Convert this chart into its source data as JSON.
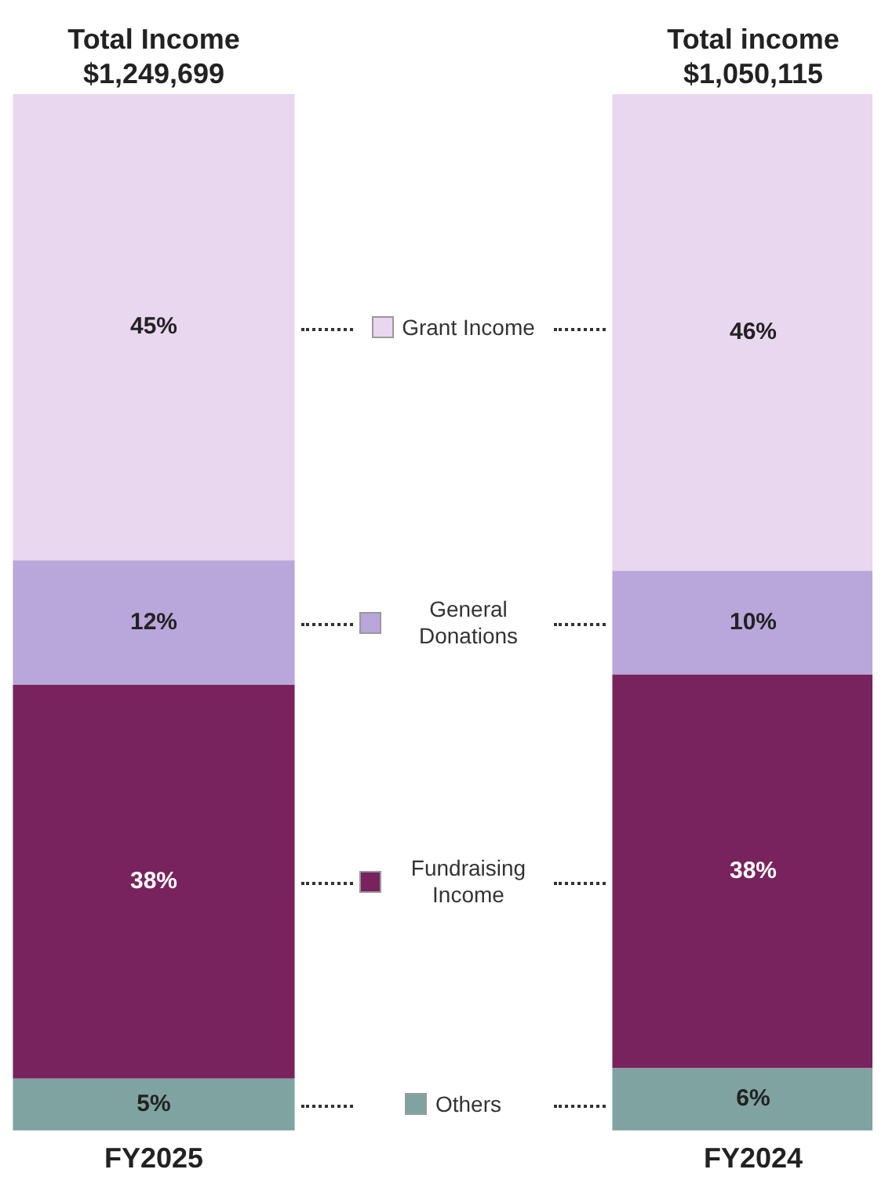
{
  "chart_data": {
    "type": "bar",
    "stacked": true,
    "categories": [
      "FY2025",
      "FY2024"
    ],
    "series": [
      {
        "name": "Others",
        "color": "#7fa3a1",
        "values": [
          5,
          6
        ],
        "value_labels": [
          "5%",
          "6%"
        ]
      },
      {
        "name": "Fundraising Income",
        "color": "#78235e",
        "values": [
          38,
          38
        ],
        "value_labels": [
          "38%",
          "38%"
        ]
      },
      {
        "name": "General Donations",
        "color": "#b9a6da",
        "values": [
          12,
          10
        ],
        "value_labels": [
          "12%",
          "10%"
        ]
      },
      {
        "name": "Grant Income",
        "color": "#e9d6ef",
        "values": [
          45,
          46
        ],
        "value_labels": [
          "45%",
          "46%"
        ]
      }
    ],
    "legend": "center",
    "grid": false,
    "annotations": [
      "Total Income\n$1,249,699",
      "Total income\n$1,050,115"
    ]
  }
}
